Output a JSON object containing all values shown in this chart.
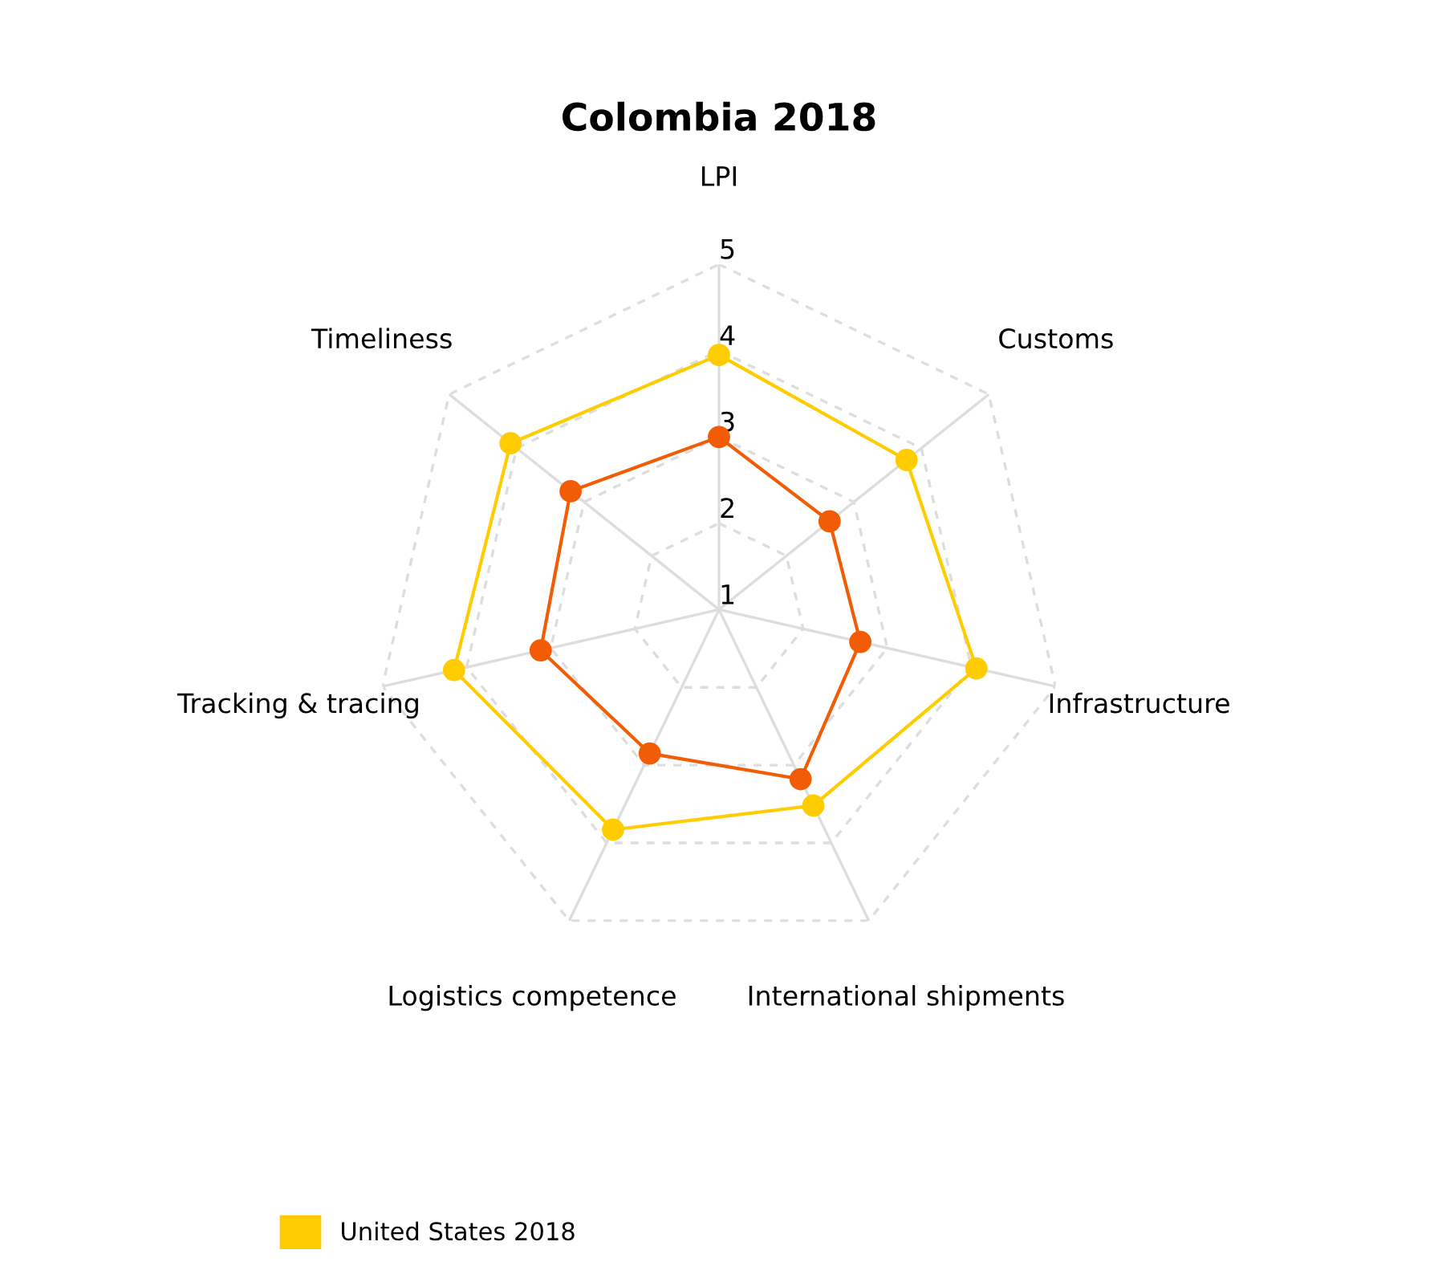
{
  "chart_data": {
    "type": "radar",
    "title": "Colombia 2018",
    "categories": [
      "LPI",
      "Customs",
      "Infrastructure",
      "International shipments",
      "Logistics competence",
      "Tracking & tracing",
      "Timeliness"
    ],
    "series": [
      {
        "name": "United States 2018",
        "color": "#ffcc00",
        "values": [
          3.95,
          3.78,
          4.06,
          3.52,
          3.83,
          4.15,
          4.09
        ]
      },
      {
        "color": "#f25c05",
        "values": [
          3.0,
          2.64,
          2.68,
          3.18,
          2.85,
          3.12,
          3.2
        ]
      }
    ],
    "ylim": [
      1,
      5
    ],
    "yticks": [
      1,
      2,
      3,
      4,
      5
    ],
    "grid": true,
    "legend": "bottom left",
    "marker": "circle",
    "line_style": "solid"
  }
}
